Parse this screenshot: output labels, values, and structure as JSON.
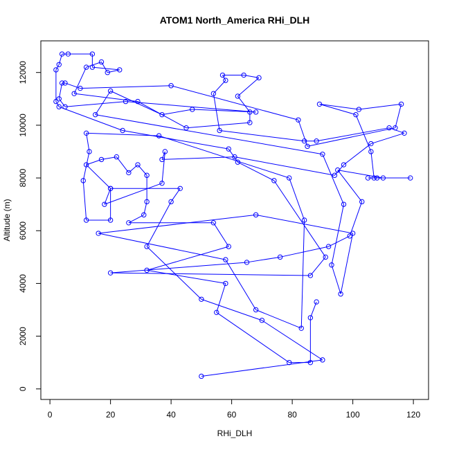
{
  "chart_data": {
    "type": "scatter",
    "title": "ATOM1 North_America RHi_DLH",
    "xlabel": "RHi_DLH",
    "ylabel": "Altitude (m)",
    "xlim": [
      -3,
      125
    ],
    "ylim": [
      -400,
      13200
    ],
    "x_ticks": [
      0,
      20,
      40,
      60,
      80,
      100,
      120
    ],
    "x_tick_labels": [
      "0",
      "20",
      "40",
      "60",
      "80",
      "100",
      "120"
    ],
    "y_ticks": [
      0,
      2000,
      4000,
      6000,
      8000,
      10000,
      12000
    ],
    "y_tick_labels": [
      "0",
      "2000",
      "4000",
      "6000",
      "8000",
      "10000",
      "12000"
    ],
    "grid": false,
    "marker": "open-circle",
    "connected": true,
    "series": [
      {
        "color": "#0000ff",
        "points": [
          [
            50,
            480
          ],
          [
            90,
            1100
          ],
          [
            70,
            2600
          ],
          [
            50,
            3400
          ],
          [
            32,
            5400
          ],
          [
            40,
            7100
          ],
          [
            43,
            7600
          ],
          [
            20,
            7600
          ],
          [
            20,
            6400
          ],
          [
            12,
            6400
          ],
          [
            11,
            7900
          ],
          [
            13,
            9000
          ],
          [
            12,
            9700
          ],
          [
            36,
            9600
          ],
          [
            79,
            8000
          ],
          [
            84,
            6400
          ],
          [
            83,
            2300
          ],
          [
            68,
            3000
          ],
          [
            58,
            4900
          ],
          [
            16,
            5900
          ],
          [
            68,
            6600
          ],
          [
            100,
            5900
          ],
          [
            96,
            3600
          ],
          [
            93,
            4700
          ],
          [
            97,
            7000
          ],
          [
            90,
            8900
          ],
          [
            15,
            10400
          ],
          [
            20,
            11300
          ],
          [
            37,
            10400
          ],
          [
            47,
            10600
          ],
          [
            68,
            10500
          ],
          [
            25,
            10900
          ],
          [
            5,
            10700
          ],
          [
            3,
            11000
          ],
          [
            4,
            11600
          ],
          [
            5,
            11600
          ],
          [
            10,
            11400
          ],
          [
            40,
            11500
          ],
          [
            82,
            10200
          ],
          [
            85,
            9200
          ],
          [
            114,
            9900
          ],
          [
            116,
            10800
          ],
          [
            102,
            10600
          ],
          [
            89,
            10800
          ],
          [
            101,
            10400
          ],
          [
            106,
            9000
          ],
          [
            107,
            8000
          ],
          [
            119,
            8000
          ],
          [
            105,
            8000
          ],
          [
            108,
            8000
          ],
          [
            110,
            8000
          ],
          [
            95,
            8300
          ],
          [
            103,
            7100
          ],
          [
            99,
            5800
          ],
          [
            92,
            5400
          ],
          [
            76,
            5000
          ],
          [
            65,
            4800
          ],
          [
            20,
            4400
          ],
          [
            86,
            4300
          ],
          [
            91,
            5000
          ],
          [
            74,
            7900
          ],
          [
            62,
            8600
          ],
          [
            59,
            9100
          ],
          [
            24,
            9800
          ],
          [
            3,
            10700
          ],
          [
            2,
            10900
          ],
          [
            2,
            12100
          ],
          [
            3,
            12300
          ],
          [
            4,
            12700
          ],
          [
            6,
            12700
          ],
          [
            14,
            12700
          ],
          [
            14,
            12200
          ],
          [
            23,
            12100
          ],
          [
            19,
            12000
          ],
          [
            17,
            12400
          ],
          [
            12,
            12200
          ],
          [
            8,
            11200
          ],
          [
            29,
            10900
          ],
          [
            45,
            9900
          ],
          [
            66,
            10100
          ],
          [
            66,
            10500
          ],
          [
            62,
            11100
          ],
          [
            69,
            11800
          ],
          [
            64,
            11900
          ],
          [
            57,
            11900
          ],
          [
            58,
            11700
          ],
          [
            54,
            11200
          ],
          [
            56,
            9800
          ],
          [
            84,
            9400
          ],
          [
            88,
            9400
          ],
          [
            112,
            9900
          ],
          [
            117,
            9700
          ],
          [
            106,
            9300
          ],
          [
            97,
            8500
          ],
          [
            94,
            8100
          ],
          [
            61,
            8800
          ],
          [
            37,
            8700
          ],
          [
            38,
            9000
          ],
          [
            37,
            7800
          ],
          [
            18,
            7000
          ],
          [
            20,
            7600
          ],
          [
            12,
            8500
          ],
          [
            17,
            8700
          ],
          [
            22,
            8800
          ],
          [
            26,
            8200
          ],
          [
            29,
            8500
          ],
          [
            32,
            8100
          ],
          [
            32,
            7100
          ],
          [
            31,
            6600
          ],
          [
            26,
            6300
          ],
          [
            54,
            6300
          ],
          [
            59,
            5400
          ],
          [
            32,
            4500
          ],
          [
            58,
            4000
          ],
          [
            55,
            2900
          ],
          [
            79,
            1000
          ],
          [
            86,
            1000
          ],
          [
            86,
            2700
          ],
          [
            88,
            3300
          ]
        ]
      }
    ]
  }
}
